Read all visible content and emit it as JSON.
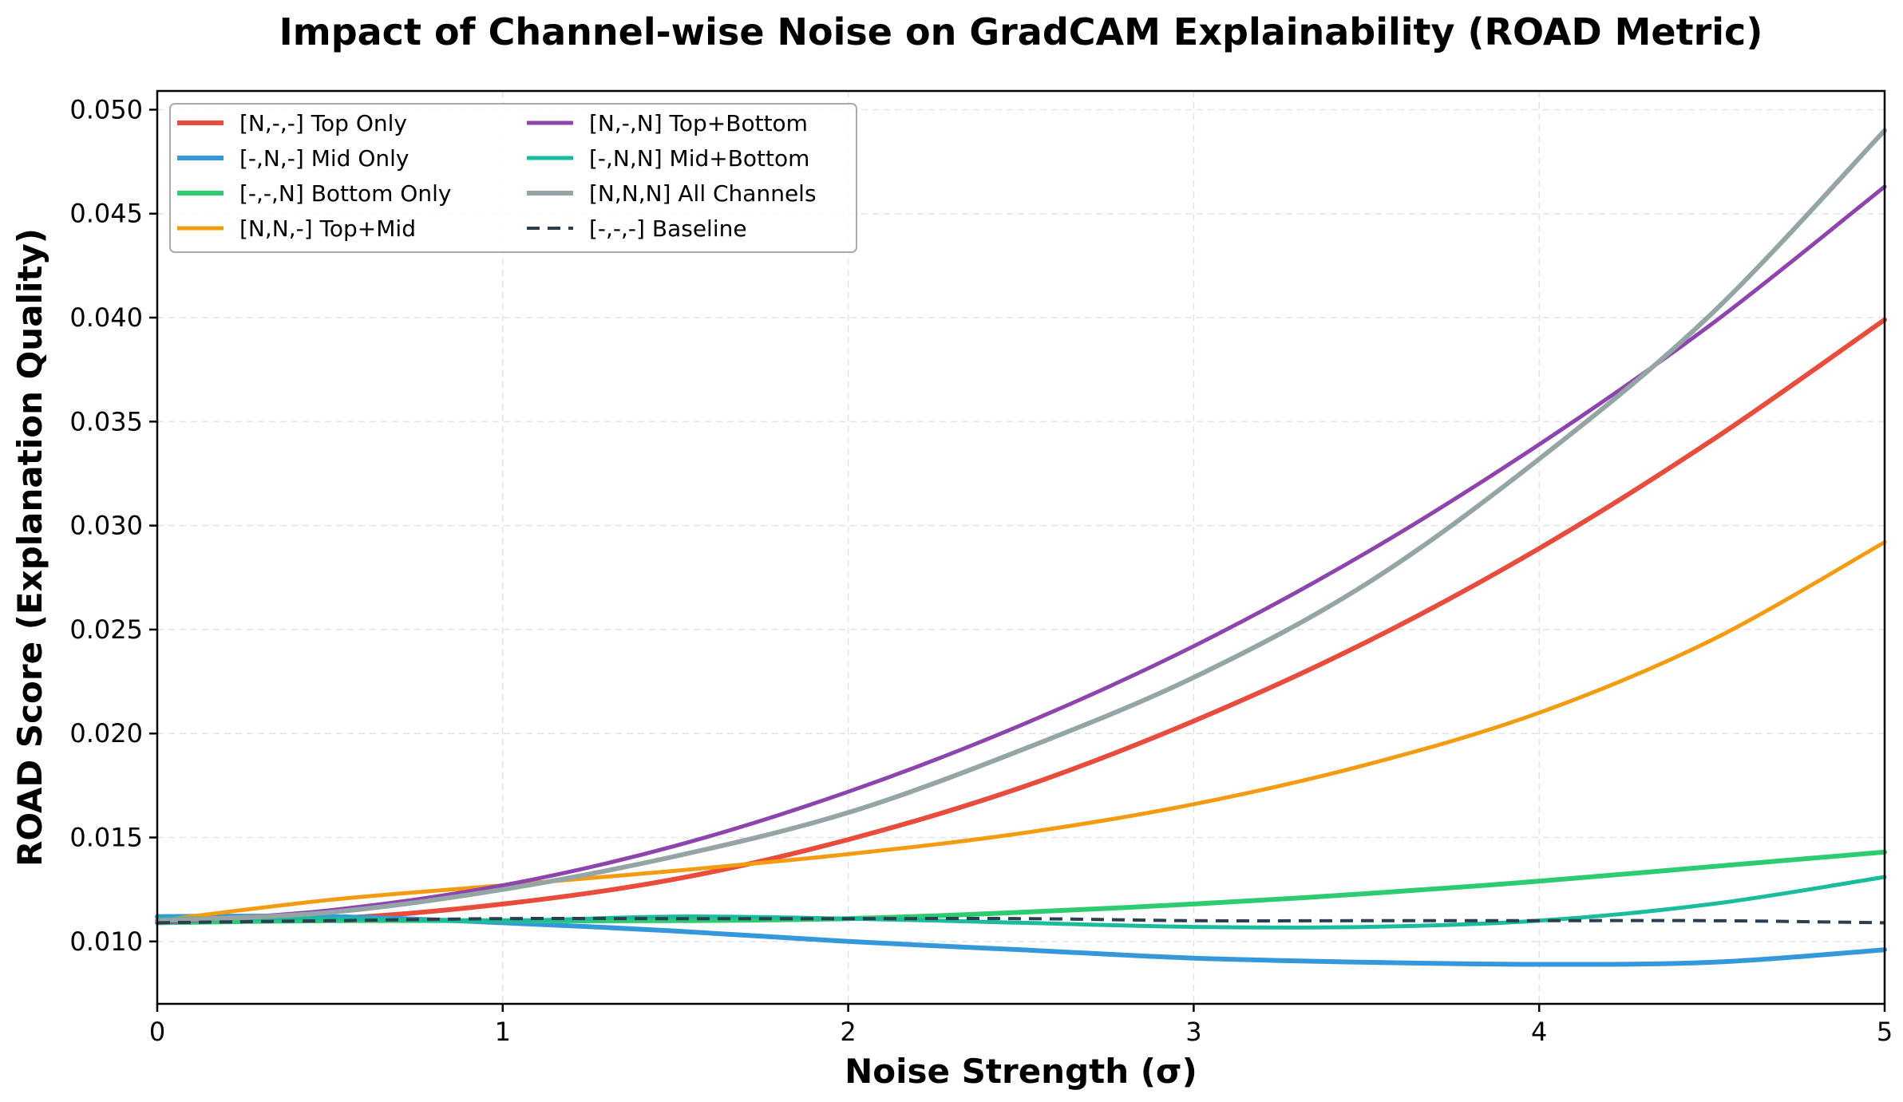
{
  "chart_data": {
    "type": "line",
    "title": "Impact of Channel-wise Noise on GradCAM Explainability (ROAD Metric)",
    "xlabel": "Noise Strength (σ)",
    "ylabel": "ROAD Score (Explanation Quality)",
    "xlim": [
      0,
      5
    ],
    "ylim": [
      0.007,
      0.0509
    ],
    "xticks": [
      0,
      1,
      2,
      3,
      4,
      5
    ],
    "xtick_labels": [
      "0",
      "1",
      "2",
      "3",
      "4",
      "5"
    ],
    "yticks": [
      0.01,
      0.015,
      0.02,
      0.025,
      0.03,
      0.035,
      0.04,
      0.045,
      0.05
    ],
    "ytick_labels": [
      "0.010",
      "0.015",
      "0.020",
      "0.025",
      "0.030",
      "0.035",
      "0.040",
      "0.045",
      "0.050"
    ],
    "grid": true,
    "legend_position": "top-left",
    "x": [
      0,
      0.5,
      1,
      1.5,
      2,
      2.5,
      3,
      3.5,
      4,
      4.5,
      5
    ],
    "series": [
      {
        "name": "[N,-,-] Top Only",
        "color": "#e74c3c",
        "dash": false,
        "width": 6,
        "values": [
          0.011,
          0.0111,
          0.0118,
          0.013,
          0.0149,
          0.0174,
          0.0206,
          0.0244,
          0.0289,
          0.0341,
          0.0399
        ]
      },
      {
        "name": "[-,N,-] Mid Only",
        "color": "#3498db",
        "dash": false,
        "width": 6,
        "values": [
          0.0112,
          0.0112,
          0.0109,
          0.0105,
          0.01,
          0.0096,
          0.0092,
          0.009,
          0.0089,
          0.009,
          0.0096
        ]
      },
      {
        "name": "[-,-,N] Bottom Only",
        "color": "#2ecc71",
        "dash": false,
        "width": 6,
        "values": [
          0.0109,
          0.011,
          0.011,
          0.011,
          0.0111,
          0.0114,
          0.0118,
          0.0123,
          0.0129,
          0.0136,
          0.0143
        ]
      },
      {
        "name": "[N,N,-] Top+Mid",
        "color": "#f39c12",
        "dash": false,
        "width": 5,
        "values": [
          0.011,
          0.012,
          0.0127,
          0.0134,
          0.0142,
          0.0152,
          0.0166,
          0.0185,
          0.021,
          0.0245,
          0.0292
        ]
      },
      {
        "name": "[N,-,N] Top+Bottom",
        "color": "#8e44ad",
        "dash": false,
        "width": 5,
        "values": [
          0.0109,
          0.0115,
          0.0127,
          0.0146,
          0.0172,
          0.0204,
          0.0242,
          0.0287,
          0.0339,
          0.0397,
          0.0463
        ]
      },
      {
        "name": "[-,N,N] Mid+Bottom",
        "color": "#1abc9c",
        "dash": false,
        "width": 5,
        "values": [
          0.0111,
          0.0111,
          0.011,
          0.0112,
          0.0111,
          0.0109,
          0.0107,
          0.0107,
          0.011,
          0.0118,
          0.0131
        ]
      },
      {
        "name": "[N,N,N] All Channels",
        "color": "#95a5a6",
        "dash": false,
        "width": 6,
        "values": [
          0.011,
          0.0114,
          0.0125,
          0.0141,
          0.0162,
          0.0192,
          0.0227,
          0.0272,
          0.0332,
          0.0402,
          0.049
        ]
      },
      {
        "name": "[-,-,-] Baseline",
        "color": "#2c3e50",
        "dash": true,
        "width": 4,
        "values": [
          0.0109,
          0.011,
          0.0111,
          0.0111,
          0.0111,
          0.0111,
          0.011,
          0.011,
          0.011,
          0.011,
          0.0109
        ]
      }
    ]
  }
}
